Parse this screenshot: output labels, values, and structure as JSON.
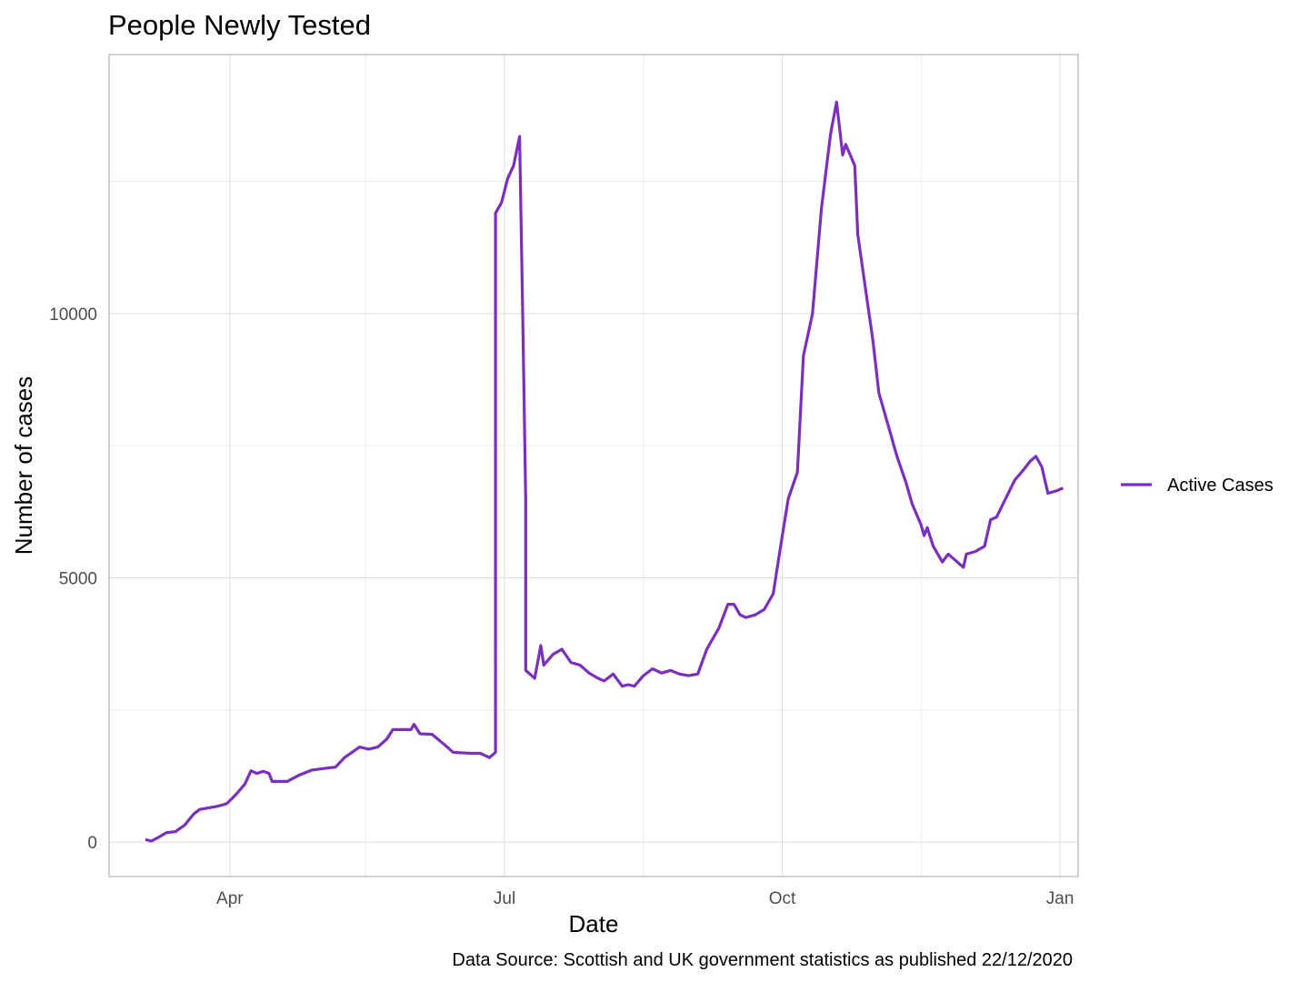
{
  "chart_data": {
    "type": "line",
    "title": "People Newly Tested",
    "xlabel": "Date",
    "ylabel": "Number of cases",
    "caption": "Data Source: Scottish and UK government statistics as published 22/12/2020",
    "x_range": [
      "2020-02-21",
      "2021-01-07"
    ],
    "y_range": [
      -650,
      14900
    ],
    "y_ticks": [
      0,
      5000,
      10000
    ],
    "y_tick_labels": [
      "0",
      "5000",
      "10000"
    ],
    "y_minor_ticks": [
      2500,
      7500,
      12500
    ],
    "x_ticks": [
      "2020-04-01",
      "2020-07-01",
      "2020-10-01",
      "2021-01-01"
    ],
    "x_tick_labels": [
      "Apr",
      "Jul",
      "Oct",
      "Jan"
    ],
    "x_minor_ticks": [
      "2020-05-16",
      "2020-08-16",
      "2020-11-16"
    ],
    "grid": true,
    "legend_position": "right",
    "series": [
      {
        "name": "Active Cases",
        "color": "#7B2FBE",
        "points": [
          [
            "2020-03-04",
            50
          ],
          [
            "2020-03-06",
            20
          ],
          [
            "2020-03-08",
            80
          ],
          [
            "2020-03-11",
            180
          ],
          [
            "2020-03-14",
            200
          ],
          [
            "2020-03-17",
            320
          ],
          [
            "2020-03-20",
            530
          ],
          [
            "2020-03-22",
            620
          ],
          [
            "2020-03-25",
            650
          ],
          [
            "2020-03-28",
            680
          ],
          [
            "2020-03-31",
            730
          ],
          [
            "2020-04-03",
            900
          ],
          [
            "2020-04-06",
            1100
          ],
          [
            "2020-04-08",
            1350
          ],
          [
            "2020-04-10",
            1300
          ],
          [
            "2020-04-12",
            1340
          ],
          [
            "2020-04-14",
            1300
          ],
          [
            "2020-04-15",
            1150
          ],
          [
            "2020-04-20",
            1150
          ],
          [
            "2020-04-24",
            1270
          ],
          [
            "2020-04-28",
            1360
          ],
          [
            "2020-05-03",
            1400
          ],
          [
            "2020-05-06",
            1420
          ],
          [
            "2020-05-09",
            1600
          ],
          [
            "2020-05-14",
            1800
          ],
          [
            "2020-05-17",
            1760
          ],
          [
            "2020-05-20",
            1800
          ],
          [
            "2020-05-23",
            1950
          ],
          [
            "2020-05-25",
            2130
          ],
          [
            "2020-05-31",
            2130
          ],
          [
            "2020-06-01",
            2230
          ],
          [
            "2020-06-03",
            2050
          ],
          [
            "2020-06-07",
            2040
          ],
          [
            "2020-06-11",
            1850
          ],
          [
            "2020-06-14",
            1700
          ],
          [
            "2020-06-20",
            1680
          ],
          [
            "2020-06-23",
            1680
          ],
          [
            "2020-06-26",
            1600
          ],
          [
            "2020-06-28",
            1700
          ],
          [
            "2020-06-28",
            5000
          ],
          [
            "2020-06-28",
            11900
          ],
          [
            "2020-06-30",
            12100
          ],
          [
            "2020-07-02",
            12550
          ],
          [
            "2020-07-04",
            12800
          ],
          [
            "2020-07-06",
            13350
          ],
          [
            "2020-07-07",
            10000
          ],
          [
            "2020-07-08",
            6500
          ],
          [
            "2020-07-08",
            3250
          ],
          [
            "2020-07-09",
            3200
          ],
          [
            "2020-07-11",
            3100
          ],
          [
            "2020-07-13",
            3720
          ],
          [
            "2020-07-14",
            3350
          ],
          [
            "2020-07-17",
            3550
          ],
          [
            "2020-07-20",
            3650
          ],
          [
            "2020-07-23",
            3400
          ],
          [
            "2020-07-26",
            3350
          ],
          [
            "2020-07-29",
            3200
          ],
          [
            "2020-08-01",
            3100
          ],
          [
            "2020-08-03",
            3050
          ],
          [
            "2020-08-06",
            3180
          ],
          [
            "2020-08-09",
            2950
          ],
          [
            "2020-08-11",
            2980
          ],
          [
            "2020-08-13",
            2950
          ],
          [
            "2020-08-16",
            3150
          ],
          [
            "2020-08-19",
            3280
          ],
          [
            "2020-08-22",
            3200
          ],
          [
            "2020-08-25",
            3250
          ],
          [
            "2020-08-28",
            3180
          ],
          [
            "2020-08-31",
            3150
          ],
          [
            "2020-09-03",
            3180
          ],
          [
            "2020-09-06",
            3650
          ],
          [
            "2020-09-10",
            4050
          ],
          [
            "2020-09-13",
            4500
          ],
          [
            "2020-09-15",
            4500
          ],
          [
            "2020-09-17",
            4300
          ],
          [
            "2020-09-19",
            4250
          ],
          [
            "2020-09-22",
            4300
          ],
          [
            "2020-09-25",
            4400
          ],
          [
            "2020-09-28",
            4700
          ],
          [
            "2020-10-01",
            5800
          ],
          [
            "2020-10-03",
            6500
          ],
          [
            "2020-10-06",
            7000
          ],
          [
            "2020-10-08",
            9200
          ],
          [
            "2020-10-11",
            10000
          ],
          [
            "2020-10-14",
            12000
          ],
          [
            "2020-10-17",
            13400
          ],
          [
            "2020-10-19",
            14000
          ],
          [
            "2020-10-21",
            13000
          ],
          [
            "2020-10-22",
            13200
          ],
          [
            "2020-10-25",
            12800
          ],
          [
            "2020-10-26",
            11500
          ],
          [
            "2020-10-29",
            10300
          ],
          [
            "2020-10-31",
            9500
          ],
          [
            "2020-11-02",
            8500
          ],
          [
            "2020-11-05",
            7900
          ],
          [
            "2020-11-08",
            7300
          ],
          [
            "2020-11-11",
            6800
          ],
          [
            "2020-11-13",
            6400
          ],
          [
            "2020-11-16",
            6000
          ],
          [
            "2020-11-17",
            5800
          ],
          [
            "2020-11-18",
            5950
          ],
          [
            "2020-11-20",
            5600
          ],
          [
            "2020-11-23",
            5300
          ],
          [
            "2020-11-25",
            5450
          ],
          [
            "2020-11-27",
            5350
          ],
          [
            "2020-11-30",
            5200
          ],
          [
            "2020-12-01",
            5450
          ],
          [
            "2020-12-04",
            5500
          ],
          [
            "2020-12-07",
            5600
          ],
          [
            "2020-12-09",
            6100
          ],
          [
            "2020-12-11",
            6150
          ],
          [
            "2020-12-14",
            6500
          ],
          [
            "2020-12-17",
            6850
          ],
          [
            "2020-12-20",
            7050
          ],
          [
            "2020-12-22",
            7200
          ],
          [
            "2020-12-24",
            7300
          ],
          [
            "2020-12-26",
            7100
          ],
          [
            "2020-12-28",
            6600
          ],
          [
            "2020-12-31",
            6650
          ],
          [
            "2021-01-02",
            6700
          ]
        ]
      }
    ]
  }
}
